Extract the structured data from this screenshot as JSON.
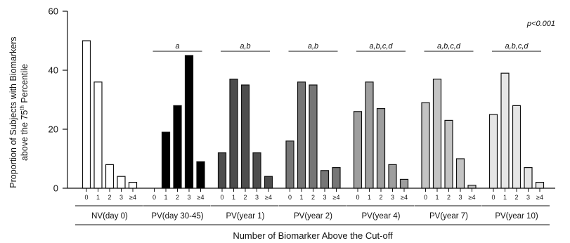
{
  "chart_data": {
    "type": "bar",
    "ylabel_line1": "Proportion of Subjects  with Biomarkers",
    "ylabel_line2_pre": "above the 75",
    "ylabel_line2_sup": "th",
    "ylabel_line2_post": " Percentile",
    "xlabel": "Number of Biomarker Above the Cut-off",
    "ylim": [
      0,
      60
    ],
    "yticks": [
      0,
      20,
      40,
      60
    ],
    "categories": [
      "0",
      "1",
      "2",
      "3",
      "≥4"
    ],
    "p_value": "p<0.001",
    "groups": [
      {
        "label": "NV(day 0)",
        "values": [
          50,
          36,
          8,
          4,
          2
        ],
        "color": "#ffffff",
        "significance": ""
      },
      {
        "label": "PV(day 30-45)",
        "values": [
          0,
          19,
          28,
          45,
          9
        ],
        "color": "#000000",
        "significance": "a"
      },
      {
        "label": "PV(year 1)",
        "values": [
          12,
          37,
          35,
          12,
          4
        ],
        "color": "#4d4d4d",
        "significance": "a,b"
      },
      {
        "label": "PV(year 2)",
        "values": [
          16,
          36,
          35,
          6,
          7
        ],
        "color": "#767676",
        "significance": "a,b"
      },
      {
        "label": "PV(year 4)",
        "values": [
          26,
          36,
          27,
          8,
          3
        ],
        "color": "#9e9e9e",
        "significance": "a,b,c,d"
      },
      {
        "label": "PV(year 7)",
        "values": [
          29,
          37,
          23,
          10,
          1
        ],
        "color": "#c4c4c4",
        "significance": "a,b,c,d"
      },
      {
        "label": "PV(year 10)",
        "values": [
          25,
          39,
          28,
          7,
          2
        ],
        "color": "#e6e6e6",
        "significance": "a,b,c,d"
      }
    ]
  }
}
